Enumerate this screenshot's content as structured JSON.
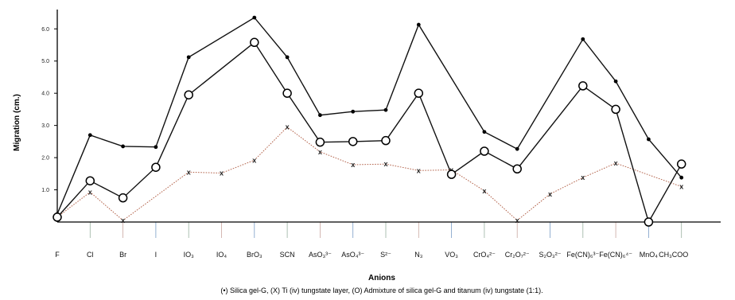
{
  "chart_data": {
    "type": "line",
    "xlabel": "Anions",
    "ylabel": "Migration (cm.)",
    "caption": "(•) Silica gel-G, (X) Ti (iv) tungstate layer, (O) Admixture of silica gel-G and titanum (iv) tungstate (1:1).",
    "categories": [
      "F",
      "Cl",
      "Br",
      "I",
      "IO₃",
      "IO₄",
      "BrO₃",
      "SCN",
      "AsO₃³⁻",
      "AsO₄³⁻",
      "S²⁻",
      "N₃",
      "VO₃",
      "CrO₄²⁻",
      "Cr₂O₇²⁻",
      "S₂O₃²⁻",
      "Fe(CN)₆³⁻",
      "Fe(CN)₆⁴⁻",
      "MnO₄",
      "CH₃COO"
    ],
    "yticks": [
      "1.0",
      "2.0",
      "3.0",
      "4.0",
      "5.0",
      "6.0"
    ],
    "ylim": [
      0,
      6.6
    ],
    "series": [
      {
        "marker": "dot",
        "values": [
          0.25,
          2.7,
          2.35,
          2.33,
          5.12,
          null,
          6.35,
          5.12,
          3.32,
          3.43,
          3.48,
          6.13,
          null,
          2.8,
          2.27,
          null,
          5.68,
          4.37,
          2.57,
          1.38
        ]
      },
      {
        "marker": "x",
        "values": [
          0.15,
          0.93,
          0.05,
          null,
          1.55,
          1.52,
          1.92,
          2.95,
          2.18,
          1.78,
          1.8,
          1.6,
          1.62,
          0.97,
          0.05,
          0.87,
          1.38,
          1.83,
          null,
          1.1
        ]
      },
      {
        "marker": "circle",
        "values": [
          0.15,
          1.28,
          0.75,
          1.7,
          3.95,
          null,
          5.58,
          4.0,
          2.48,
          2.5,
          2.53,
          4.0,
          1.48,
          2.2,
          1.65,
          null,
          4.23,
          3.5,
          0.0,
          1.8
        ]
      }
    ]
  }
}
